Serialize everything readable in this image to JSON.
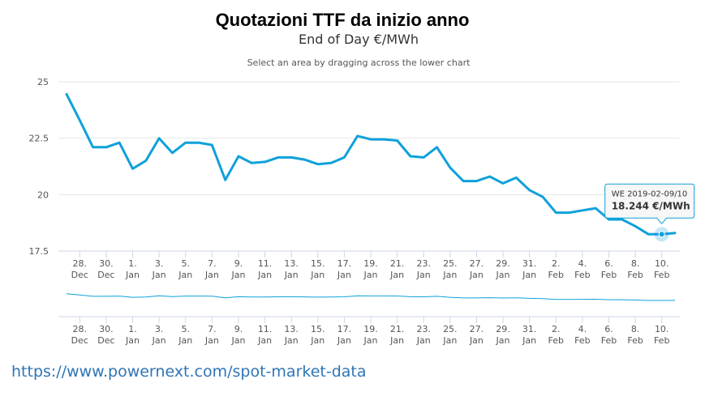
{
  "chart_data": {
    "type": "line",
    "title": "Quotazioni TTF da inizio anno",
    "subtitle": "End of Day €/MWh",
    "hint": "Select an area by dragging across the lower chart",
    "ylim": [
      17.5,
      25
    ],
    "yticks": [
      25,
      22.5,
      20,
      17.5
    ],
    "ytick_labels": [
      "25",
      "22.5",
      "20",
      "17.5"
    ],
    "x_range": [
      0,
      46
    ],
    "xticks": [
      {
        "x": 1,
        "day": "28.",
        "month": "Dec"
      },
      {
        "x": 3,
        "day": "30.",
        "month": "Dec"
      },
      {
        "x": 5,
        "day": "1.",
        "month": "Jan"
      },
      {
        "x": 7,
        "day": "3.",
        "month": "Jan"
      },
      {
        "x": 9,
        "day": "5.",
        "month": "Jan"
      },
      {
        "x": 11,
        "day": "7.",
        "month": "Jan"
      },
      {
        "x": 13,
        "day": "9.",
        "month": "Jan"
      },
      {
        "x": 15,
        "day": "11.",
        "month": "Jan"
      },
      {
        "x": 17,
        "day": "13.",
        "month": "Jan"
      },
      {
        "x": 19,
        "day": "15.",
        "month": "Jan"
      },
      {
        "x": 21,
        "day": "17.",
        "month": "Jan"
      },
      {
        "x": 23,
        "day": "19.",
        "month": "Jan"
      },
      {
        "x": 25,
        "day": "21.",
        "month": "Jan"
      },
      {
        "x": 27,
        "day": "23.",
        "month": "Jan"
      },
      {
        "x": 29,
        "day": "25.",
        "month": "Jan"
      },
      {
        "x": 31,
        "day": "27.",
        "month": "Jan"
      },
      {
        "x": 33,
        "day": "29.",
        "month": "Jan"
      },
      {
        "x": 35,
        "day": "31.",
        "month": "Jan"
      },
      {
        "x": 37,
        "day": "2.",
        "month": "Feb"
      },
      {
        "x": 39,
        "day": "4.",
        "month": "Feb"
      },
      {
        "x": 41,
        "day": "6.",
        "month": "Feb"
      },
      {
        "x": 43,
        "day": "8.",
        "month": "Feb"
      },
      {
        "x": 45,
        "day": "10.",
        "month": "Feb"
      }
    ],
    "series": [
      {
        "name": "TTF",
        "color": "#0fa1da",
        "x": [
          0,
          1,
          2,
          3,
          4,
          5,
          6,
          7,
          8,
          9,
          10,
          11,
          12,
          13,
          14,
          15,
          16,
          17,
          18,
          19,
          20,
          21,
          22,
          23,
          24,
          25,
          26,
          27,
          28,
          29,
          30,
          31,
          32,
          33,
          34,
          35,
          36,
          37,
          38,
          39,
          40,
          41,
          42,
          43,
          44,
          45,
          46
        ],
        "values": [
          24.45,
          23.3,
          22.1,
          22.1,
          22.3,
          21.15,
          21.5,
          22.5,
          21.85,
          22.3,
          22.3,
          22.2,
          20.65,
          21.7,
          21.4,
          21.45,
          21.65,
          21.65,
          21.55,
          21.35,
          21.4,
          21.65,
          22.6,
          22.45,
          22.45,
          22.4,
          21.7,
          21.65,
          22.1,
          21.2,
          20.6,
          20.6,
          20.8,
          20.5,
          20.75,
          20.2,
          19.9,
          19.2,
          19.2,
          19.3,
          19.4,
          18.9,
          18.9,
          18.6,
          18.244,
          18.244,
          18.3
        ]
      }
    ],
    "navigator": {
      "values": [
        24.45,
        23.3,
        22.1,
        22.1,
        22.3,
        21.15,
        21.5,
        22.5,
        21.85,
        22.3,
        22.3,
        22.2,
        20.65,
        21.7,
        21.4,
        21.45,
        21.65,
        21.65,
        21.55,
        21.35,
        21.4,
        21.65,
        22.6,
        22.45,
        22.45,
        22.4,
        21.7,
        21.65,
        22.1,
        21.2,
        20.6,
        20.6,
        20.8,
        20.5,
        20.75,
        20.2,
        19.9,
        19.2,
        19.2,
        19.3,
        19.4,
        18.9,
        18.9,
        18.6,
        18.244,
        18.244,
        18.3
      ]
    },
    "tooltip": {
      "x": 45,
      "value": 18.244,
      "date_text": "WE 2019-02-09/10",
      "value_text": "18.244 €/MWh"
    }
  },
  "source": {
    "url": "https://www.powernext.com/spot-market-data"
  }
}
